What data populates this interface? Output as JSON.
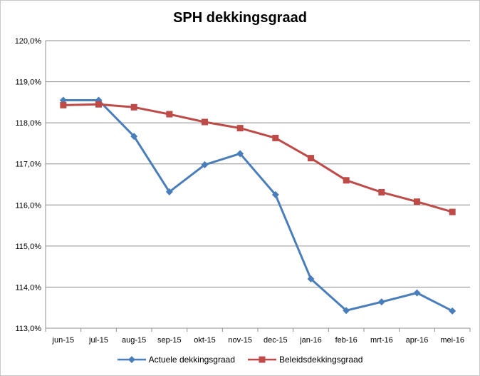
{
  "chart_data": {
    "type": "line",
    "title": "SPH dekkingsgraad",
    "xlabel": "",
    "ylabel": "",
    "categories": [
      "jun-15",
      "jul-15",
      "aug-15",
      "sep-15",
      "okt-15",
      "nov-15",
      "dec-15",
      "jan-16",
      "feb-16",
      "mrt-16",
      "apr-16",
      "mei-16"
    ],
    "ylim": [
      113.0,
      120.0
    ],
    "yticks": [
      "113,0%",
      "114,0%",
      "115,0%",
      "116,0%",
      "117,0%",
      "118,0%",
      "119,0%",
      "120,0%"
    ],
    "grid": true,
    "legend_position": "bottom",
    "series": [
      {
        "name": "Actuele dekkingsgraad",
        "color": "#4a7ebb",
        "marker": "diamond",
        "values": [
          118.55,
          118.55,
          117.67,
          116.32,
          116.98,
          117.25,
          116.25,
          114.2,
          113.43,
          113.64,
          113.86,
          113.42
        ]
      },
      {
        "name": "Beleidsdekkingsgraad",
        "color": "#be4b48",
        "marker": "square",
        "values": [
          118.43,
          118.45,
          118.38,
          118.21,
          118.02,
          117.87,
          117.63,
          117.14,
          116.6,
          116.31,
          116.08,
          115.83
        ]
      }
    ]
  }
}
